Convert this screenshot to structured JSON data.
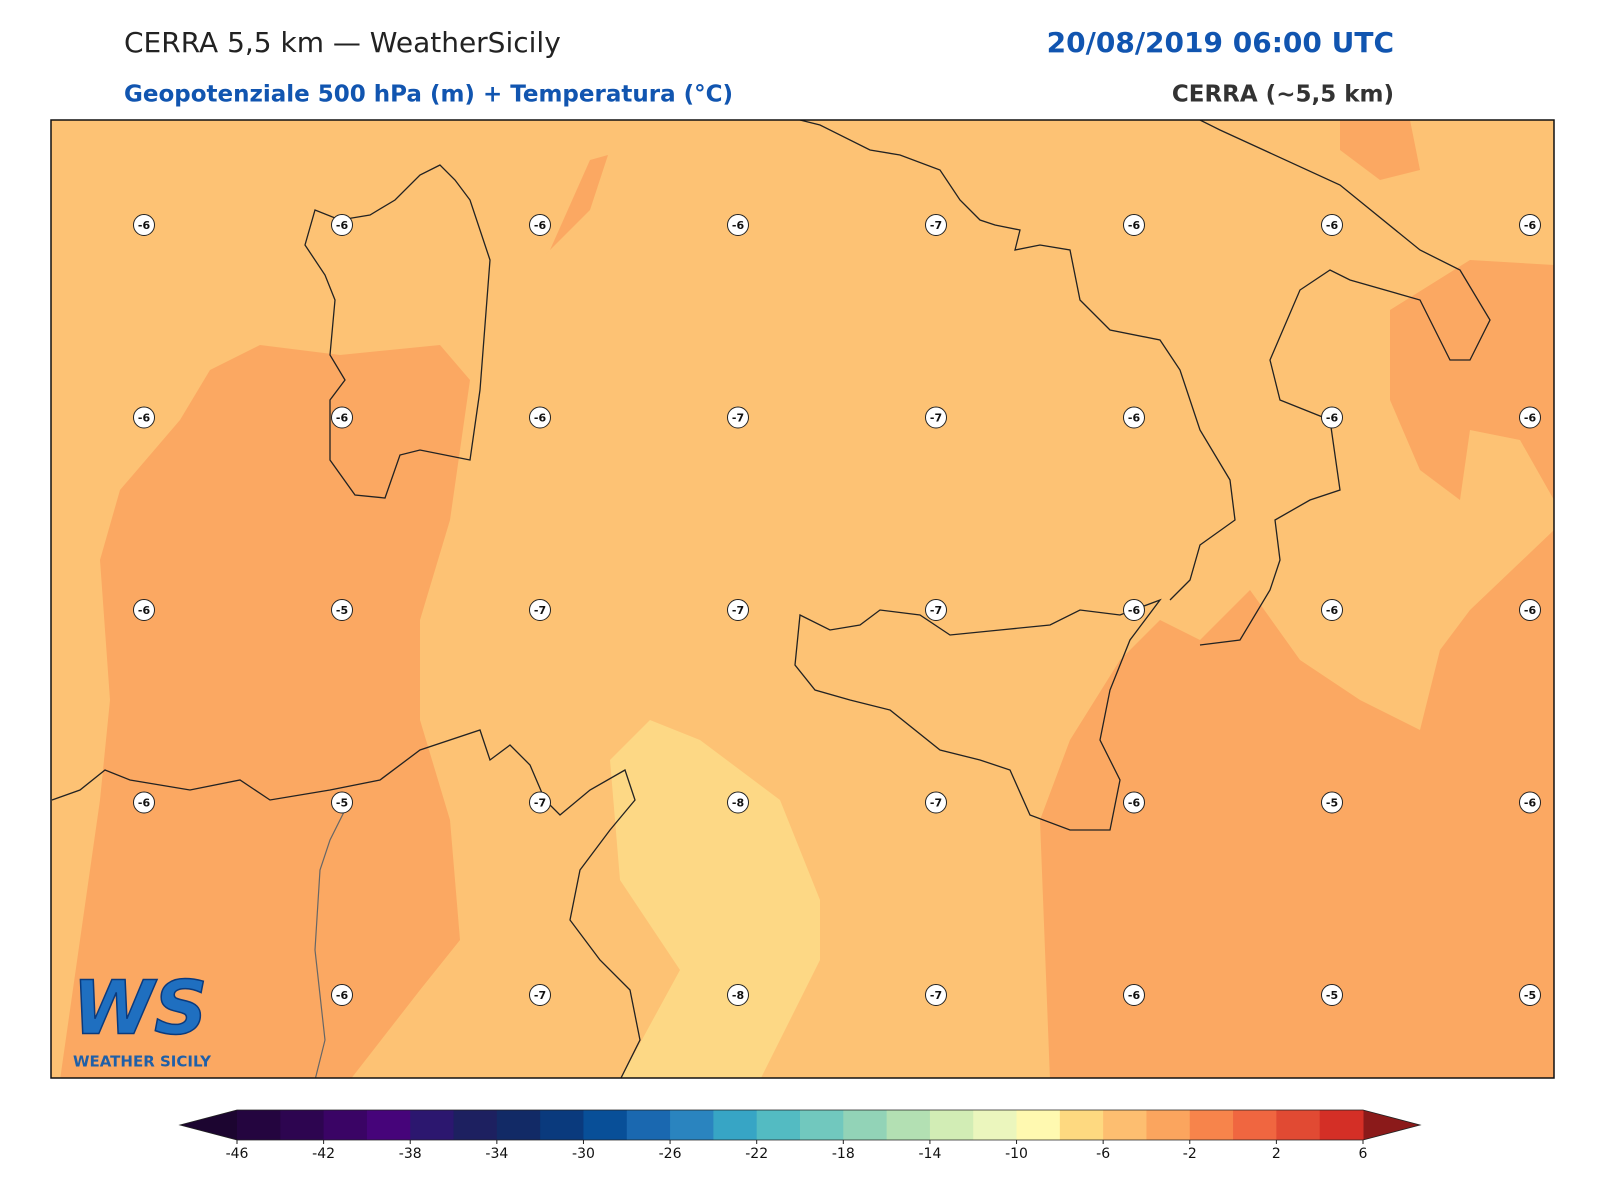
{
  "header": {
    "title": "CERRA 5,5 km — WeatherSicily",
    "datetime": "20/08/2019 06:00 UTC",
    "subtitle": "Geopotenziale 500 hPa (m) + Temperatura (°C)",
    "model": "CERRA (~5,5 km)"
  },
  "map": {
    "temperature_labels": [
      [
        -6,
        -6,
        -6,
        -6,
        -7,
        -6,
        -6,
        -6
      ],
      [
        -6,
        -6,
        -6,
        -7,
        -7,
        -6,
        -6,
        -6
      ],
      [
        -6,
        -5,
        -7,
        -7,
        -7,
        -6,
        -6,
        -6
      ],
      [
        -6,
        -5,
        -7,
        -8,
        -7,
        -6,
        -5,
        -6
      ],
      [
        null,
        -6,
        -7,
        -8,
        -7,
        -6,
        -5,
        -5
      ]
    ]
  },
  "colorbar": {
    "ticks": [
      -46,
      -42,
      -38,
      -34,
      -30,
      -26,
      -22,
      -18,
      -14,
      -10,
      -6,
      -2,
      2,
      6
    ],
    "colors": [
      "#24053f",
      "#2d0550",
      "#3a0465",
      "#46047a",
      "#2c176f",
      "#1d2060",
      "#122a66",
      "#0a3a7d",
      "#084f98",
      "#1a68b0",
      "#2a84bf",
      "#37a5c5",
      "#53bbc2",
      "#71c8be",
      "#92d3b7",
      "#b3e0b3",
      "#d2edb5",
      "#ebf6bd",
      "#fff9b0",
      "#fed980",
      "#fdbe70",
      "#fba55e",
      "#f7844b",
      "#f06640",
      "#e14a33",
      "#d42f26"
    ],
    "under_color": "#1c0530",
    "over_color": "#8b1a1a"
  },
  "logo": {
    "text": "WS",
    "subtitle": "WEATHER SICILY"
  }
}
